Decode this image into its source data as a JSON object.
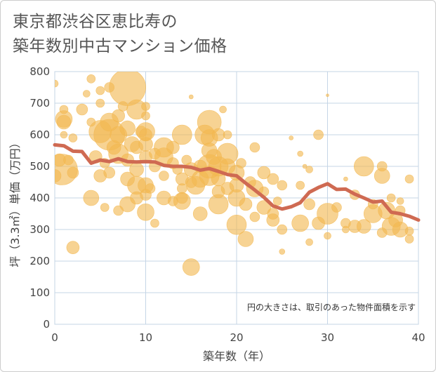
{
  "title_lines": [
    "東京都渋谷区恵比寿の",
    "築年数別中古マンション価格"
  ],
  "note": "円の大きさは、取引のあった物件面積を示す",
  "colors": {
    "bubble": "#f2b851",
    "line": "#cf6a52",
    "grid": "#c5d5e6",
    "bg": "#ffffff"
  },
  "chart_data": {
    "type": "scatter",
    "xlabel": "築年数（年）",
    "ylabel": "坪（3.3㎡）単価（万円）",
    "xlim": [
      0,
      40
    ],
    "ylim": [
      0,
      800
    ],
    "x_ticks": [
      0,
      10,
      20,
      30,
      40
    ],
    "y_ticks": [
      0,
      100,
      200,
      300,
      400,
      500,
      600,
      700,
      800
    ],
    "grid": true,
    "bubbles": [
      {
        "x": 0,
        "y": 762,
        "s": 5
      },
      {
        "x": 0,
        "y": 470,
        "s": 9
      },
      {
        "x": 0.5,
        "y": 520,
        "s": 9
      },
      {
        "x": 0.8,
        "y": 490,
        "s": 22
      },
      {
        "x": 1,
        "y": 650,
        "s": 12
      },
      {
        "x": 1,
        "y": 640,
        "s": 10
      },
      {
        "x": 1,
        "y": 600,
        "s": 5
      },
      {
        "x": 1,
        "y": 680,
        "s": 6
      },
      {
        "x": 1.5,
        "y": 520,
        "s": 7
      },
      {
        "x": 2,
        "y": 480,
        "s": 8
      },
      {
        "x": 2,
        "y": 243,
        "s": 9
      },
      {
        "x": 2,
        "y": 590,
        "s": 6
      },
      {
        "x": 3,
        "y": 680,
        "s": 8
      },
      {
        "x": 3.5,
        "y": 730,
        "s": 5
      },
      {
        "x": 4,
        "y": 777,
        "s": 6
      },
      {
        "x": 4,
        "y": 400,
        "s": 11
      },
      {
        "x": 4,
        "y": 640,
        "s": 6
      },
      {
        "x": 4.5,
        "y": 530,
        "s": 9
      },
      {
        "x": 5,
        "y": 470,
        "s": 9
      },
      {
        "x": 5,
        "y": 700,
        "s": 6
      },
      {
        "x": 5,
        "y": 740,
        "s": 6
      },
      {
        "x": 5,
        "y": 610,
        "s": 16
      },
      {
        "x": 5.5,
        "y": 510,
        "s": 7
      },
      {
        "x": 5.5,
        "y": 370,
        "s": 6
      },
      {
        "x": 6,
        "y": 750,
        "s": 7
      },
      {
        "x": 6,
        "y": 600,
        "s": 22
      },
      {
        "x": 6,
        "y": 480,
        "s": 8
      },
      {
        "x": 6,
        "y": 640,
        "s": 13
      },
      {
        "x": 6.5,
        "y": 560,
        "s": 10
      },
      {
        "x": 7,
        "y": 660,
        "s": 9
      },
      {
        "x": 7,
        "y": 600,
        "s": 12
      },
      {
        "x": 7,
        "y": 540,
        "s": 14
      },
      {
        "x": 7,
        "y": 360,
        "s": 7
      },
      {
        "x": 7.5,
        "y": 690,
        "s": 7
      },
      {
        "x": 8,
        "y": 750,
        "s": 26
      },
      {
        "x": 8,
        "y": 620,
        "s": 11
      },
      {
        "x": 8,
        "y": 520,
        "s": 9
      },
      {
        "x": 8,
        "y": 460,
        "s": 10
      },
      {
        "x": 8,
        "y": 380,
        "s": 11
      },
      {
        "x": 8.5,
        "y": 570,
        "s": 11
      },
      {
        "x": 9,
        "y": 680,
        "s": 14
      },
      {
        "x": 9,
        "y": 560,
        "s": 9
      },
      {
        "x": 9,
        "y": 490,
        "s": 10
      },
      {
        "x": 9,
        "y": 440,
        "s": 13
      },
      {
        "x": 9,
        "y": 400,
        "s": 9
      },
      {
        "x": 9.5,
        "y": 610,
        "s": 8
      },
      {
        "x": 10,
        "y": 690,
        "s": 6
      },
      {
        "x": 10,
        "y": 660,
        "s": 6
      },
      {
        "x": 10,
        "y": 610,
        "s": 13
      },
      {
        "x": 10,
        "y": 570,
        "s": 10
      },
      {
        "x": 10,
        "y": 530,
        "s": 9
      },
      {
        "x": 10,
        "y": 440,
        "s": 11
      },
      {
        "x": 10,
        "y": 410,
        "s": 8
      },
      {
        "x": 10,
        "y": 355,
        "s": 12
      },
      {
        "x": 10,
        "y": 600,
        "s": 9
      },
      {
        "x": 10.5,
        "y": 430,
        "s": 7
      },
      {
        "x": 11,
        "y": 540,
        "s": 8
      },
      {
        "x": 11,
        "y": 500,
        "s": 8
      },
      {
        "x": 11,
        "y": 320,
        "s": 6
      },
      {
        "x": 12,
        "y": 560,
        "s": 14
      },
      {
        "x": 12,
        "y": 530,
        "s": 13
      },
      {
        "x": 12,
        "y": 470,
        "s": 7
      },
      {
        "x": 12,
        "y": 400,
        "s": 10
      },
      {
        "x": 13,
        "y": 560,
        "s": 9
      },
      {
        "x": 13,
        "y": 510,
        "s": 8
      },
      {
        "x": 13,
        "y": 390,
        "s": 7
      },
      {
        "x": 13.5,
        "y": 490,
        "s": 7
      },
      {
        "x": 14,
        "y": 600,
        "s": 14
      },
      {
        "x": 14,
        "y": 460,
        "s": 9
      },
      {
        "x": 14,
        "y": 430,
        "s": 7
      },
      {
        "x": 14,
        "y": 390,
        "s": 12
      },
      {
        "x": 14,
        "y": 400,
        "s": 8
      },
      {
        "x": 14.5,
        "y": 520,
        "s": 7
      },
      {
        "x": 15,
        "y": 720,
        "s": 3
      },
      {
        "x": 15,
        "y": 490,
        "s": 10
      },
      {
        "x": 15,
        "y": 450,
        "s": 8
      },
      {
        "x": 15,
        "y": 181,
        "s": 12
      },
      {
        "x": 15.5,
        "y": 440,
        "s": 13
      },
      {
        "x": 16,
        "y": 500,
        "s": 9
      },
      {
        "x": 16,
        "y": 460,
        "s": 12
      },
      {
        "x": 16,
        "y": 350,
        "s": 10
      },
      {
        "x": 16.5,
        "y": 600,
        "s": 14
      },
      {
        "x": 17,
        "y": 640,
        "s": 17
      },
      {
        "x": 17,
        "y": 590,
        "s": 12
      },
      {
        "x": 17,
        "y": 550,
        "s": 11
      },
      {
        "x": 17,
        "y": 500,
        "s": 17
      },
      {
        "x": 17,
        "y": 470,
        "s": 14
      },
      {
        "x": 17.5,
        "y": 530,
        "s": 11
      },
      {
        "x": 18,
        "y": 600,
        "s": 9
      },
      {
        "x": 18,
        "y": 500,
        "s": 14
      },
      {
        "x": 18,
        "y": 460,
        "s": 10
      },
      {
        "x": 18,
        "y": 380,
        "s": 14
      },
      {
        "x": 18,
        "y": 420,
        "s": 9
      },
      {
        "x": 18.5,
        "y": 680,
        "s": 5
      },
      {
        "x": 19,
        "y": 540,
        "s": 15
      },
      {
        "x": 19,
        "y": 500,
        "s": 11
      },
      {
        "x": 19,
        "y": 600,
        "s": 6
      },
      {
        "x": 19,
        "y": 430,
        "s": 9
      },
      {
        "x": 20,
        "y": 480,
        "s": 11
      },
      {
        "x": 20,
        "y": 440,
        "s": 10
      },
      {
        "x": 20,
        "y": 400,
        "s": 12
      },
      {
        "x": 20,
        "y": 315,
        "s": 14
      },
      {
        "x": 20.5,
        "y": 510,
        "s": 7
      },
      {
        "x": 21,
        "y": 380,
        "s": 9
      },
      {
        "x": 21,
        "y": 270,
        "s": 11
      },
      {
        "x": 21.5,
        "y": 450,
        "s": 8
      },
      {
        "x": 22,
        "y": 430,
        "s": 12
      },
      {
        "x": 22,
        "y": 560,
        "s": 7
      },
      {
        "x": 22,
        "y": 340,
        "s": 7
      },
      {
        "x": 23,
        "y": 480,
        "s": 9
      },
      {
        "x": 23,
        "y": 420,
        "s": 7
      },
      {
        "x": 23,
        "y": 370,
        "s": 10
      },
      {
        "x": 24,
        "y": 460,
        "s": 8
      },
      {
        "x": 24,
        "y": 330,
        "s": 9
      },
      {
        "x": 24,
        "y": 350,
        "s": 8
      },
      {
        "x": 24.5,
        "y": 390,
        "s": 6
      },
      {
        "x": 25,
        "y": 300,
        "s": 7
      },
      {
        "x": 25,
        "y": 230,
        "s": 4
      },
      {
        "x": 25,
        "y": 440,
        "s": 7
      },
      {
        "x": 26,
        "y": 590,
        "s": 3
      },
      {
        "x": 27,
        "y": 440,
        "s": 6
      },
      {
        "x": 27,
        "y": 320,
        "s": 12
      },
      {
        "x": 27,
        "y": 540,
        "s": 4
      },
      {
        "x": 27.5,
        "y": 500,
        "s": 3
      },
      {
        "x": 28,
        "y": 490,
        "s": 5
      },
      {
        "x": 28,
        "y": 380,
        "s": 8
      },
      {
        "x": 28,
        "y": 260,
        "s": 5
      },
      {
        "x": 29,
        "y": 320,
        "s": 9
      },
      {
        "x": 29,
        "y": 600,
        "s": 7
      },
      {
        "x": 30,
        "y": 350,
        "s": 15
      },
      {
        "x": 30,
        "y": 725,
        "s": 2
      },
      {
        "x": 30,
        "y": 280,
        "s": 5
      },
      {
        "x": 31,
        "y": 370,
        "s": 7
      },
      {
        "x": 32,
        "y": 460,
        "s": 3
      },
      {
        "x": 32,
        "y": 320,
        "s": 7
      },
      {
        "x": 32,
        "y": 300,
        "s": 5
      },
      {
        "x": 33,
        "y": 410,
        "s": 7
      },
      {
        "x": 33,
        "y": 310,
        "s": 9
      },
      {
        "x": 34,
        "y": 310,
        "s": 10
      },
      {
        "x": 34,
        "y": 500,
        "s": 14
      },
      {
        "x": 35,
        "y": 350,
        "s": 13
      },
      {
        "x": 35,
        "y": 380,
        "s": 7
      },
      {
        "x": 36,
        "y": 500,
        "s": 7
      },
      {
        "x": 36,
        "y": 470,
        "s": 11
      },
      {
        "x": 36,
        "y": 290,
        "s": 7
      },
      {
        "x": 36.5,
        "y": 360,
        "s": 12
      },
      {
        "x": 37,
        "y": 310,
        "s": 13
      },
      {
        "x": 37,
        "y": 400,
        "s": 6
      },
      {
        "x": 37.5,
        "y": 330,
        "s": 10
      },
      {
        "x": 38,
        "y": 300,
        "s": 11
      },
      {
        "x": 38,
        "y": 390,
        "s": 5
      },
      {
        "x": 38,
        "y": 360,
        "s": 7
      },
      {
        "x": 39,
        "y": 460,
        "s": 6
      },
      {
        "x": 39,
        "y": 295,
        "s": 6
      },
      {
        "x": 39,
        "y": 270,
        "s": 6
      }
    ],
    "trend_line": [
      {
        "x": 0,
        "y": 568
      },
      {
        "x": 1,
        "y": 565
      },
      {
        "x": 2,
        "y": 548
      },
      {
        "x": 3,
        "y": 547
      },
      {
        "x": 4,
        "y": 510
      },
      {
        "x": 5,
        "y": 520
      },
      {
        "x": 6,
        "y": 515
      },
      {
        "x": 7,
        "y": 524
      },
      {
        "x": 8,
        "y": 515
      },
      {
        "x": 9,
        "y": 514
      },
      {
        "x": 10,
        "y": 515
      },
      {
        "x": 11,
        "y": 514
      },
      {
        "x": 12,
        "y": 503
      },
      {
        "x": 13,
        "y": 500
      },
      {
        "x": 14,
        "y": 500
      },
      {
        "x": 15,
        "y": 497
      },
      {
        "x": 16,
        "y": 488
      },
      {
        "x": 17,
        "y": 493
      },
      {
        "x": 18,
        "y": 484
      },
      {
        "x": 19,
        "y": 474
      },
      {
        "x": 20,
        "y": 470
      },
      {
        "x": 21,
        "y": 447
      },
      {
        "x": 22,
        "y": 425
      },
      {
        "x": 23,
        "y": 402
      },
      {
        "x": 24,
        "y": 375
      },
      {
        "x": 25,
        "y": 365
      },
      {
        "x": 26,
        "y": 372
      },
      {
        "x": 27,
        "y": 385
      },
      {
        "x": 28,
        "y": 418
      },
      {
        "x": 29,
        "y": 433
      },
      {
        "x": 30,
        "y": 445
      },
      {
        "x": 31,
        "y": 427
      },
      {
        "x": 32,
        "y": 428
      },
      {
        "x": 33,
        "y": 412
      },
      {
        "x": 34,
        "y": 400
      },
      {
        "x": 35,
        "y": 387
      },
      {
        "x": 36,
        "y": 390
      },
      {
        "x": 37,
        "y": 355
      },
      {
        "x": 38,
        "y": 350
      },
      {
        "x": 39,
        "y": 342
      },
      {
        "x": 40,
        "y": 330
      }
    ]
  }
}
